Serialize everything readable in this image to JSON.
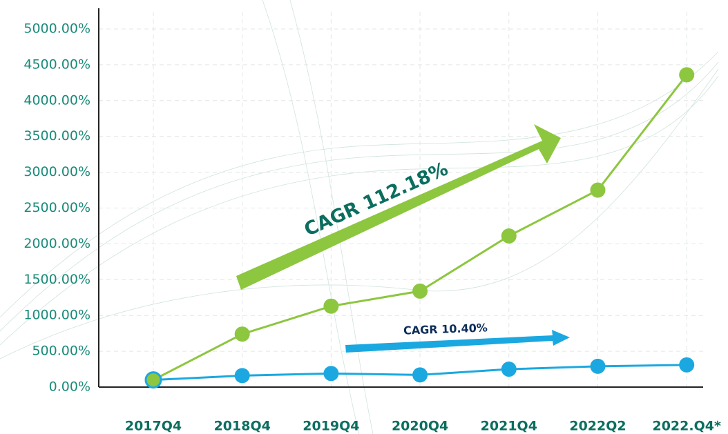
{
  "chart_data": {
    "type": "line",
    "categories": [
      "2017Q4",
      "2018Q4",
      "2019Q4",
      "2020Q4",
      "2021Q4",
      "2022Q2",
      "2022.Q4*"
    ],
    "series": [
      {
        "color": "#1ba8e0",
        "values": [
          100,
          160,
          190,
          170,
          250,
          290,
          310
        ]
      },
      {
        "color": "#8dc63f",
        "values": [
          100,
          740,
          1130,
          1340,
          2110,
          2750,
          4360
        ]
      }
    ],
    "ylim": [
      0,
      5000
    ],
    "yticks": [
      {
        "value": 0,
        "label": "0.00%"
      },
      {
        "value": 500,
        "label": "500.00%"
      },
      {
        "value": 1000,
        "label": "1000.00%"
      },
      {
        "value": 1500,
        "label": "1500.00%"
      },
      {
        "value": 2000,
        "label": "2000.00%"
      },
      {
        "value": 2500,
        "label": "2500.00%"
      },
      {
        "value": 3000,
        "label": "3000.00%"
      },
      {
        "value": 3500,
        "label": "3500.00%"
      },
      {
        "value": 4000,
        "label": "4000.00%"
      },
      {
        "value": 4500,
        "label": "4500.00%"
      },
      {
        "value": 5000,
        "label": "5000.00%"
      }
    ],
    "grid": true,
    "annotations": [
      "CAGR 112.18%",
      "CAGR 10.40%"
    ]
  }
}
